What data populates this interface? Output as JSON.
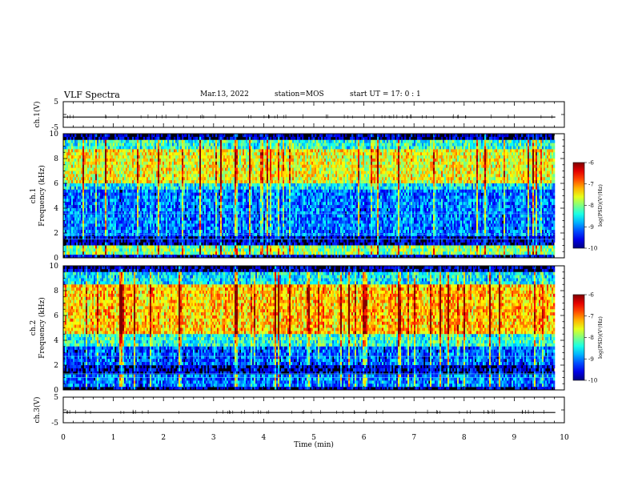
{
  "header": {
    "title": "VLF Spectra",
    "date": "Mar.13, 2022",
    "station": "station=MOS",
    "start": "start  UT =   17: 0  : 1"
  },
  "chart_data": [
    {
      "type": "line",
      "name": "ch1-waveform",
      "ylabel": "ch.1(V)",
      "ylim": [
        -5,
        5
      ],
      "yticks": [
        "5",
        "-5"
      ],
      "xlim": [
        0,
        10
      ],
      "series": [
        {
          "values_constant": -1.0
        }
      ]
    },
    {
      "type": "heatmap",
      "name": "ch1-spectrogram",
      "ylabel_line1": "ch.1",
      "ylabel_line2": "Frequency (kHz)",
      "ylim": [
        0,
        10
      ],
      "yticks": [
        "0",
        "2",
        "4",
        "6",
        "8",
        "10"
      ],
      "xlim": [
        0,
        10
      ],
      "data_xrange_min": [
        0,
        9.8
      ],
      "colorbar": {
        "label": "log(PSD)(V²/Hz)",
        "range": [
          -10,
          -6
        ],
        "ticks": [
          "-10",
          "-9",
          "-8",
          "-7",
          "-6"
        ]
      }
    },
    {
      "type": "heatmap",
      "name": "ch2-spectrogram",
      "ylabel_line1": "ch.2",
      "ylabel_line2": "Frequency (kHz)",
      "ylim": [
        0,
        10
      ],
      "yticks": [
        "0",
        "2",
        "4",
        "6",
        "8",
        "10"
      ],
      "xlim": [
        0,
        10
      ],
      "data_xrange_min": [
        0,
        9.8
      ],
      "colorbar": {
        "label": "log(PSD)(V²/Hz)",
        "range": [
          -10,
          -6
        ],
        "ticks": [
          "-10",
          "-9",
          "-8",
          "-7",
          "-6"
        ]
      }
    },
    {
      "type": "line",
      "name": "ch3-waveform",
      "ylabel": "ch.3(V)",
      "ylim": [
        -5,
        5
      ],
      "yticks": [
        "5",
        "-5"
      ],
      "xlim": [
        0,
        10
      ],
      "xlabel": "Time  (min)",
      "xticks": [
        "0",
        "1",
        "2",
        "3",
        "4",
        "5",
        "6",
        "7",
        "8",
        "9",
        "10"
      ],
      "series": [
        {
          "values_constant": -1.0
        }
      ]
    }
  ]
}
